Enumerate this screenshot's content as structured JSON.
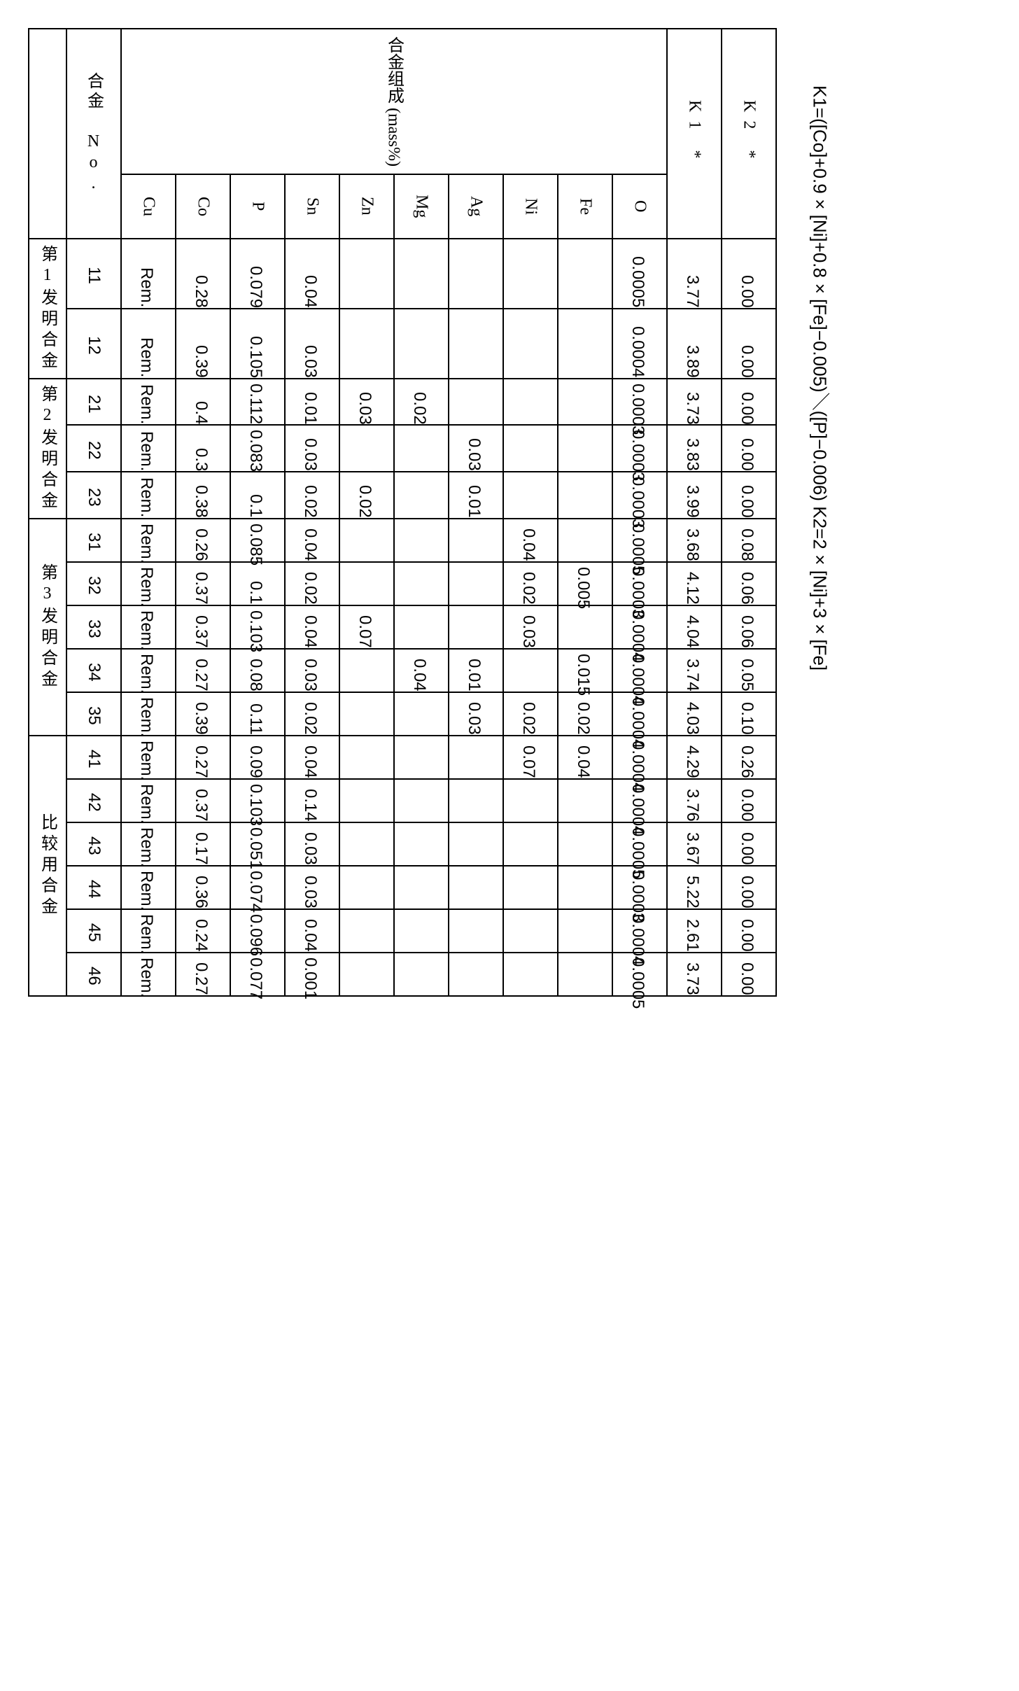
{
  "headers": {
    "composition": "合金组成 (mass%)",
    "alloy_no_label": "合金\nNo.",
    "cols": [
      "Cu",
      "Co",
      "P",
      "Sn",
      "Zn",
      "Mg",
      "Ag",
      "Ni",
      "Fe",
      "O"
    ],
    "k1": "K1 *",
    "k2": "K2 *"
  },
  "groups": [
    {
      "label": "第1发明合金",
      "rows": [
        "11",
        "12"
      ]
    },
    {
      "label": "第2发明合金",
      "rows": [
        "21",
        "22",
        "23"
      ]
    },
    {
      "label": "第3发明合金",
      "rows": [
        "31",
        "32",
        "33",
        "34",
        "35"
      ]
    },
    {
      "label": "比较用合金",
      "rows": [
        "41",
        "42",
        "43",
        "44",
        "45",
        "46"
      ]
    }
  ],
  "rows": {
    "11": {
      "Cu": "Rem.",
      "Co": "0.28",
      "P": "0.079",
      "Sn": "0.04",
      "Zn": "",
      "Mg": "",
      "Ag": "",
      "Ni": "",
      "Fe": "",
      "O": "0.0005",
      "K1": "3.77",
      "K2": "0.00"
    },
    "12": {
      "Cu": "Rem.",
      "Co": "0.39",
      "P": "0.105",
      "Sn": "0.03",
      "Zn": "",
      "Mg": "",
      "Ag": "",
      "Ni": "",
      "Fe": "",
      "O": "0.0004",
      "K1": "3.89",
      "K2": "0.00"
    },
    "21": {
      "Cu": "Rem.",
      "Co": "0.4",
      "P": "0.112",
      "Sn": "0.01",
      "Zn": "0.03",
      "Mg": "0.02",
      "Ag": "",
      "Ni": "",
      "Fe": "",
      "O": "0.0003",
      "K1": "3.73",
      "K2": "0.00"
    },
    "22": {
      "Cu": "Rem.",
      "Co": "0.3",
      "P": "0.083",
      "Sn": "0.03",
      "Zn": "",
      "Mg": "",
      "Ag": "0.03",
      "Ni": "",
      "Fe": "",
      "O": "0.0003",
      "K1": "3.83",
      "K2": "0.00"
    },
    "23": {
      "Cu": "Rem.",
      "Co": "0.38",
      "P": "0.1",
      "Sn": "0.02",
      "Zn": "0.02",
      "Mg": "",
      "Ag": "0.01",
      "Ni": "",
      "Fe": "",
      "O": "0.0003",
      "K1": "3.99",
      "K2": "0.00"
    },
    "31": {
      "Cu": "Rem.",
      "Co": "0.26",
      "P": "0.085",
      "Sn": "0.04",
      "Zn": "",
      "Mg": "",
      "Ag": "",
      "Ni": "0.04",
      "Fe": "",
      "O": "0.0005",
      "K1": "3.68",
      "K2": "0.08"
    },
    "32": {
      "Cu": "Rem.",
      "Co": "0.37",
      "P": "0.1",
      "Sn": "0.02",
      "Zn": "",
      "Mg": "",
      "Ag": "",
      "Ni": "0.02",
      "Fe": "0.005",
      "O": "0.0003",
      "K1": "4.12",
      "K2": "0.06"
    },
    "33": {
      "Cu": "Rem.",
      "Co": "0.37",
      "P": "0.103",
      "Sn": "0.04",
      "Zn": "0.07",
      "Mg": "",
      "Ag": "",
      "Ni": "0.03",
      "Fe": "",
      "O": "0.0004",
      "K1": "4.04",
      "K2": "0.06"
    },
    "34": {
      "Cu": "Rem.",
      "Co": "0.27",
      "P": "0.08",
      "Sn": "0.03",
      "Zn": "",
      "Mg": "0.04",
      "Ag": "0.01",
      "Ni": "",
      "Fe": "0.015",
      "O": "0.0004",
      "K1": "3.74",
      "K2": "0.05"
    },
    "35": {
      "Cu": "Rem.",
      "Co": "0.39",
      "P": "0.11",
      "Sn": "0.02",
      "Zn": "",
      "Mg": "",
      "Ag": "0.03",
      "Ni": "0.02",
      "Fe": "0.02",
      "O": "0.0004",
      "K1": "4.03",
      "K2": "0.10"
    },
    "41": {
      "Cu": "Rem.",
      "Co": "0.27",
      "P": "0.09",
      "Sn": "0.04",
      "Zn": "",
      "Mg": "",
      "Ag": "",
      "Ni": "0.07",
      "Fe": "0.04",
      "O": "0.0004",
      "K1": "4.29",
      "K2": "0.26"
    },
    "42": {
      "Cu": "Rem.",
      "Co": "0.37",
      "P": "0.103",
      "Sn": "0.14",
      "Zn": "",
      "Mg": "",
      "Ag": "",
      "Ni": "",
      "Fe": "",
      "O": "0.0004",
      "K1": "3.76",
      "K2": "0.00"
    },
    "43": {
      "Cu": "Rem.",
      "Co": "0.17",
      "P": "0.051",
      "Sn": "0.03",
      "Zn": "",
      "Mg": "",
      "Ag": "",
      "Ni": "",
      "Fe": "",
      "O": "0.0005",
      "K1": "3.67",
      "K2": "0.00"
    },
    "44": {
      "Cu": "Rem.",
      "Co": "0.36",
      "P": "0.074",
      "Sn": "0.03",
      "Zn": "",
      "Mg": "",
      "Ag": "",
      "Ni": "",
      "Fe": "",
      "O": "0.0003",
      "K1": "5.22",
      "K2": "0.00"
    },
    "45": {
      "Cu": "Rem.",
      "Co": "0.24",
      "P": "0.096",
      "Sn": "0.04",
      "Zn": "",
      "Mg": "",
      "Ag": "",
      "Ni": "",
      "Fe": "",
      "O": "0.0004",
      "K1": "2.61",
      "K2": "0.00"
    },
    "46": {
      "Cu": "Rem.",
      "Co": "0.27",
      "P": "0.077",
      "Sn": "0.001",
      "Zn": "",
      "Mg": "",
      "Ag": "",
      "Ni": "",
      "Fe": "",
      "O": "0.0005",
      "K1": "3.73",
      "K2": "0.00"
    }
  },
  "footnote": "K1=([Co]+0.9×[Ni]+0.8×[Fe]−0.005)／([P]−0.006)\nK2=2×[Ni]+3×[Fe]"
}
